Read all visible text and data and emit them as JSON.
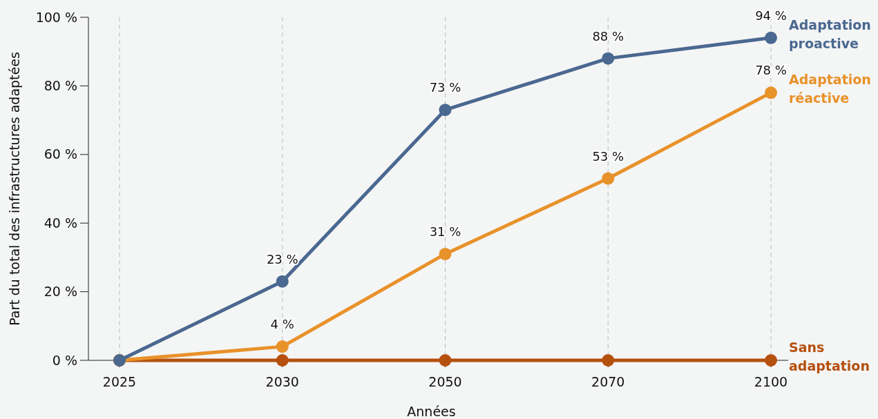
{
  "chart_data": {
    "type": "line",
    "xlabel": "Années",
    "ylabel": "Part du total des infrastructures adaptées",
    "categories": [
      "2025",
      "2030",
      "2050",
      "2070",
      "2100"
    ],
    "ylim": [
      0,
      100
    ],
    "yticks": [
      {
        "value": 0,
        "label": "0 %"
      },
      {
        "value": 20,
        "label": "20 %"
      },
      {
        "value": 40,
        "label": "40 %"
      },
      {
        "value": 60,
        "label": "60 %"
      },
      {
        "value": 80,
        "label": "80 %"
      },
      {
        "value": 100,
        "label": "100 %"
      }
    ],
    "grid": "x",
    "marker": "circle",
    "line_style": "solid",
    "legend": "right",
    "series": [
      {
        "name": "Adaptation proactive",
        "color": "#4a6890",
        "values": [
          0,
          23,
          73,
          88,
          94
        ],
        "value_labels": [
          null,
          "23 %",
          "73 %",
          "88 %",
          "94 %"
        ]
      },
      {
        "name": "Adaptation réactive",
        "color": "#e8922a",
        "values": [
          0,
          4,
          31,
          53,
          78
        ],
        "value_labels": [
          null,
          "4 %",
          "31 %",
          "53 %",
          "78 %"
        ]
      },
      {
        "name": "Sans adaptation",
        "color": "#b5500f",
        "values": [
          0,
          0,
          0,
          0,
          0
        ]
      }
    ]
  }
}
